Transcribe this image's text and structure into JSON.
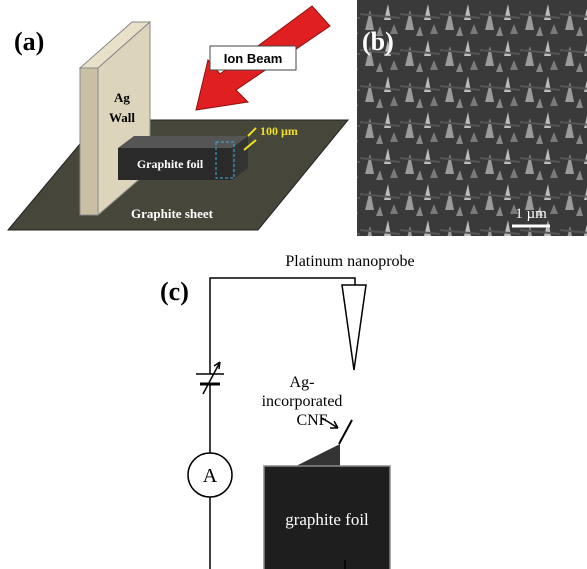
{
  "panels": [
    {
      "label": "(a)",
      "wall_label": [
        "Ag",
        "Wall"
      ],
      "beam_label": "Ion Beam",
      "foil_label": "Graphite foil",
      "thickness_label": "100 µm",
      "sheet_label": "Graphite sheet"
    },
    {
      "label": "(b)",
      "scale_bar_label": "1 µm"
    },
    {
      "label": "(c)",
      "probe_label": "Platinum nanoprobe",
      "cnf_label": [
        "Ag-",
        "incorporated",
        "CNF"
      ],
      "ammeter_label": "A",
      "foil_label": "graphite foil"
    }
  ]
}
